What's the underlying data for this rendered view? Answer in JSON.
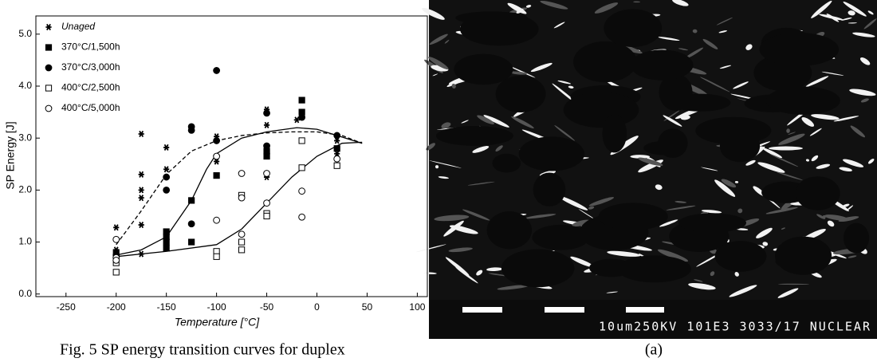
{
  "chart_data": {
    "type": "scatter",
    "xlabel": "Temperature [°C]",
    "ylabel": "SP Energy [J]",
    "xlim": [
      -280,
      110
    ],
    "ylim": [
      -0.05,
      5.35
    ],
    "xticks": [
      -250,
      -200,
      -150,
      -100,
      -50,
      0,
      50,
      100
    ],
    "yticks": [
      {
        "value": 0,
        "label": "0.0"
      },
      {
        "value": 1,
        "label": "1.0"
      },
      {
        "value": 2,
        "label": "2.0"
      },
      {
        "value": 3,
        "label": "3.0"
      },
      {
        "value": 4,
        "label": "4.0"
      },
      {
        "value": 5,
        "label": "5.0"
      }
    ],
    "legend": "upper left",
    "series": [
      {
        "name": "Unaged",
        "marker": "asterisk",
        "color": "#000000",
        "x": [
          -200,
          -200,
          -175,
          -175,
          -175,
          -175,
          -175,
          -175,
          -150,
          -150,
          -150,
          -100,
          -100,
          -50,
          -50,
          -50,
          -20,
          20,
          20
        ],
        "values": [
          1.28,
          0.85,
          3.08,
          2.3,
          2.0,
          1.85,
          1.33,
          0.77,
          2.82,
          2.4,
          1.2,
          3.03,
          2.55,
          3.55,
          3.25,
          2.25,
          3.35,
          2.95,
          2.7
        ]
      },
      {
        "name": "370°C/1,500h",
        "marker": "square-filled",
        "color": "#000000",
        "x": [
          -200,
          -150,
          -150,
          -150,
          -150,
          -125,
          -125,
          -100,
          -50,
          -50,
          -15,
          -15,
          20
        ],
        "values": [
          0.8,
          1.2,
          1.1,
          1.0,
          0.88,
          1.8,
          1.0,
          2.28,
          2.75,
          2.65,
          3.73,
          3.5,
          2.8
        ]
      },
      {
        "name": "370°C/3,000h",
        "marker": "circle-filled",
        "color": "#000000",
        "x": [
          -200,
          -150,
          -150,
          -125,
          -125,
          -125,
          -100,
          -100,
          -50,
          -50,
          -15,
          20
        ],
        "values": [
          0.75,
          2.25,
          2.0,
          3.22,
          3.15,
          1.35,
          4.3,
          2.95,
          3.48,
          2.85,
          3.4,
          3.05
        ]
      },
      {
        "name": "400°C/2,500h",
        "marker": "square-open",
        "color": "#000000",
        "x": [
          -200,
          -200,
          -100,
          -100,
          -75,
          -75,
          -75,
          -50,
          -50,
          -15,
          -15,
          20
        ],
        "values": [
          0.42,
          0.6,
          0.82,
          0.72,
          1.0,
          0.85,
          1.9,
          1.55,
          1.5,
          2.95,
          2.43,
          2.47
        ]
      },
      {
        "name": "400°C/5,000h",
        "marker": "circle-open",
        "color": "#000000",
        "x": [
          -200,
          -200,
          -200,
          -100,
          -100,
          -75,
          -75,
          -75,
          -50,
          -50,
          -15,
          -15,
          20
        ],
        "values": [
          1.05,
          0.7,
          0.65,
          1.42,
          2.65,
          2.32,
          1.85,
          1.15,
          2.32,
          1.75,
          1.98,
          1.48,
          2.6
        ]
      }
    ],
    "curves": [
      {
        "dash": true,
        "color": "#000000",
        "x": [
          -200,
          -175,
          -150,
          -125,
          -100,
          -75,
          -50,
          -25,
          0,
          25,
          45
        ],
        "values": [
          0.95,
          1.6,
          2.3,
          2.75,
          2.95,
          3.05,
          3.1,
          3.12,
          3.12,
          3.05,
          2.9
        ]
      },
      {
        "dash": false,
        "color": "#000000",
        "x": [
          -200,
          -175,
          -150,
          -125,
          -110,
          -100,
          -75,
          -50,
          -20,
          0,
          25,
          45
        ],
        "values": [
          0.75,
          0.85,
          1.1,
          1.8,
          2.4,
          2.7,
          3.0,
          3.12,
          3.2,
          3.17,
          3.02,
          2.9
        ]
      },
      {
        "dash": false,
        "color": "#000000",
        "x": [
          -200,
          -150,
          -100,
          -75,
          -50,
          -25,
          0,
          25,
          45
        ],
        "values": [
          0.72,
          0.82,
          0.95,
          1.25,
          1.75,
          2.25,
          2.65,
          2.9,
          2.92
        ]
      }
    ]
  },
  "figure": {
    "caption": "Fig. 5 SP energy transition curves for duplex",
    "image": {
      "overlay_text": "10um250KV 101E3 3033/17 NUCLEAR",
      "label": "(a)"
    }
  }
}
